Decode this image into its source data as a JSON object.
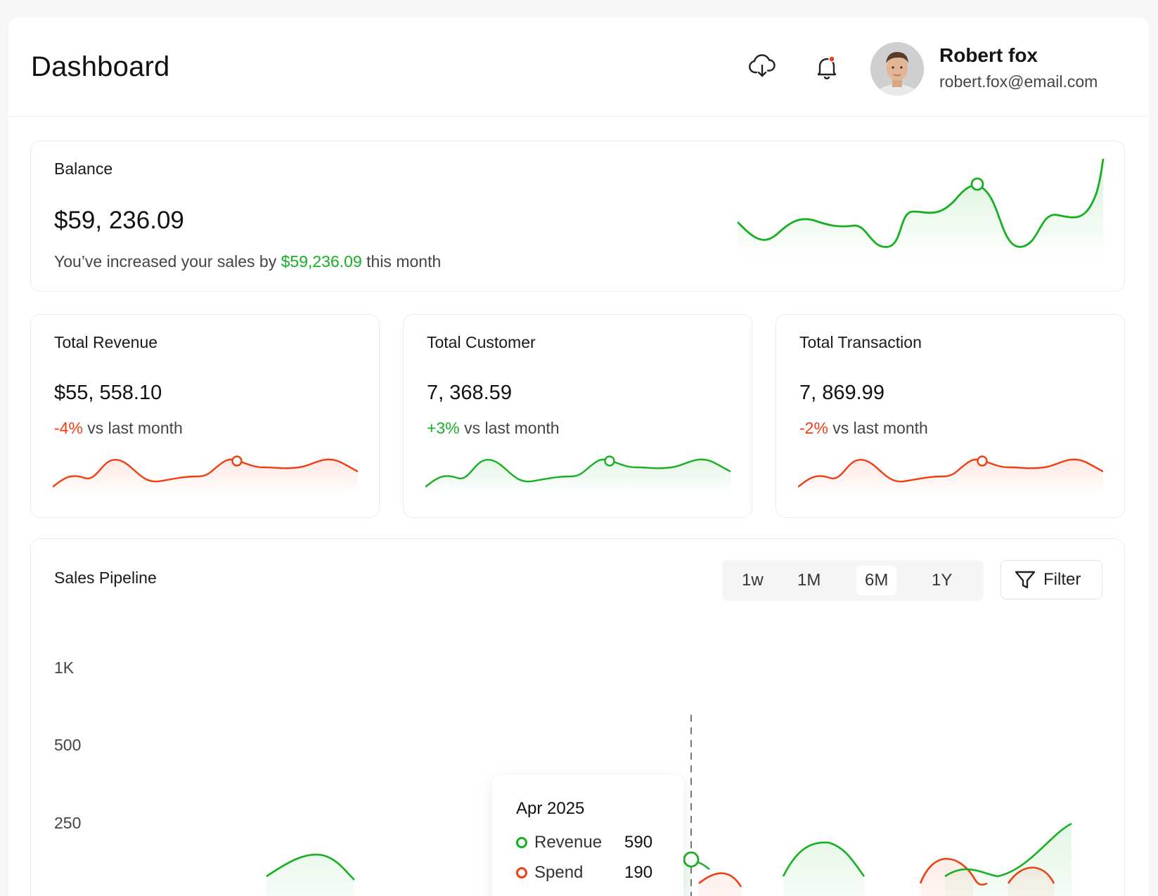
{
  "header": {
    "title": "Dashboard",
    "user": {
      "name": "Robert fox",
      "email": "robert.fox@email.com"
    },
    "icons": [
      "cloud-download-icon",
      "bell-icon"
    ],
    "notification_dot_color": "#f13d12"
  },
  "balance": {
    "label": "Balance",
    "value": "$59, 236.09",
    "note_prefix": "You’ve increased your sales by ",
    "note_amount": "$59,236.09",
    "note_suffix": " this month"
  },
  "stats": [
    {
      "label": "Total Revenue",
      "value": "$55, 558.10",
      "change": "-4%",
      "change_suffix": " vs last month",
      "trend": "negative"
    },
    {
      "label": "Total Customer",
      "value": "7, 368.59",
      "change": "+3%",
      "change_suffix": " vs last month",
      "trend": "positive"
    },
    {
      "label": "Total Transaction",
      "value": "7, 869.99",
      "change": "-2%",
      "change_suffix": " vs last month",
      "trend": "negative"
    }
  ],
  "pipeline": {
    "title": "Sales Pipeline",
    "ranges": [
      "1w",
      "1M",
      "6M",
      "1Y"
    ],
    "active_range": "6M",
    "filter_label": "Filter",
    "y_ticks": [
      "1K",
      "500",
      "250"
    ],
    "tooltip": {
      "title": "Apr 2025",
      "rows": [
        {
          "name": "Revenue",
          "value": "590",
          "color": "#17b023"
        },
        {
          "name": "Spend",
          "value": "190",
          "color": "#f13d12"
        }
      ]
    }
  },
  "colors": {
    "positive": "#17b023",
    "negative": "#f13d12"
  }
}
